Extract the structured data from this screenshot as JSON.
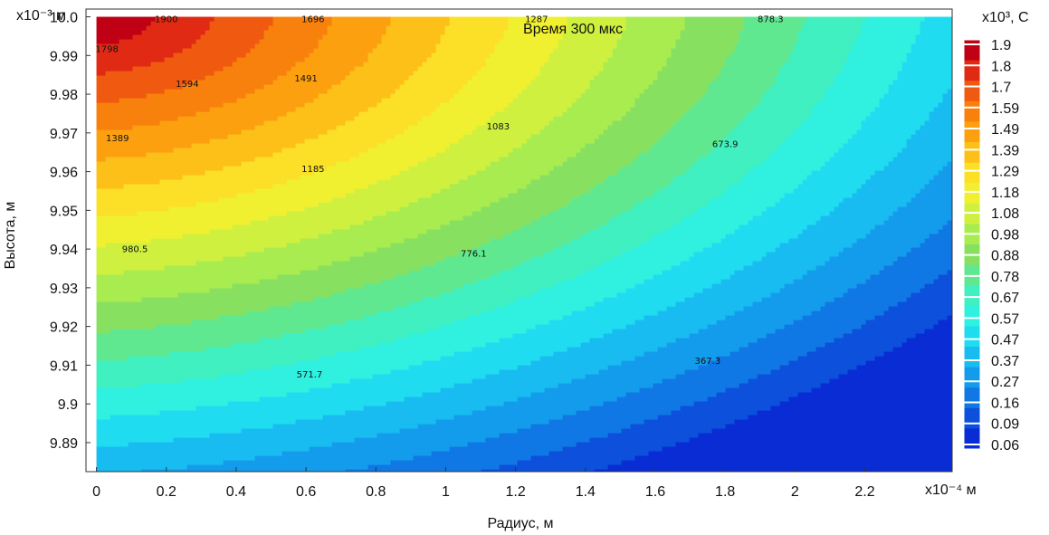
{
  "chart_data": {
    "type": "heatmap",
    "title": "Время 300 мкс",
    "xlabel": "Радиус, м",
    "ylabel": "Высота, м",
    "x_multiplier": "x10⁻⁴ м",
    "y_multiplier": "x10⁻³ м",
    "colorbar_title": "x10³, С",
    "xlim": [
      -0.03,
      2.45
    ],
    "ylim": [
      9.8825,
      10.002
    ],
    "x_ticks": [
      {
        "value": 0,
        "label": "0"
      },
      {
        "value": 0.2,
        "label": "0.2"
      },
      {
        "value": 0.4,
        "label": "0.4"
      },
      {
        "value": 0.6,
        "label": "0.6"
      },
      {
        "value": 0.8,
        "label": "0.8"
      },
      {
        "value": 1.0,
        "label": "1"
      },
      {
        "value": 1.2,
        "label": "1.2"
      },
      {
        "value": 1.4,
        "label": "1.4"
      },
      {
        "value": 1.6,
        "label": "1.6"
      },
      {
        "value": 1.8,
        "label": "1.8"
      },
      {
        "value": 2.0,
        "label": "2"
      },
      {
        "value": 2.2,
        "label": "2.2"
      }
    ],
    "y_ticks": [
      {
        "value": 10.0,
        "label": "10.0"
      },
      {
        "value": 9.99,
        "label": "9.99"
      },
      {
        "value": 9.98,
        "label": "9.98"
      },
      {
        "value": 9.97,
        "label": "9.97"
      },
      {
        "value": 9.96,
        "label": "9.96"
      },
      {
        "value": 9.95,
        "label": "9.95"
      },
      {
        "value": 9.94,
        "label": "9.94"
      },
      {
        "value": 9.93,
        "label": "9.93"
      },
      {
        "value": 9.92,
        "label": "9.92"
      },
      {
        "value": 9.91,
        "label": "9.91"
      },
      {
        "value": 9.9,
        "label": "9.9"
      },
      {
        "value": 9.89,
        "label": "9.89"
      }
    ],
    "data_xrange": [
      0,
      2.45
    ],
    "data_yrange": [
      9.8825,
      10.0
    ],
    "colorbar_levels": [
      "1.9",
      "1.8",
      "1.7",
      "1.59",
      "1.49",
      "1.39",
      "1.29",
      "1.18",
      "1.08",
      "0.98",
      "0.88",
      "0.78",
      "0.67",
      "0.57",
      "0.47",
      "0.37",
      "0.27",
      "0.16",
      "0.09",
      "0.06"
    ],
    "colorbar_colors": [
      "#c00014",
      "#e02a14",
      "#f05a10",
      "#f8800c",
      "#fca010",
      "#fcc018",
      "#fce028",
      "#f0f030",
      "#d0f040",
      "#a8ec50",
      "#88e060",
      "#60e890",
      "#40f0c0",
      "#30f0e0",
      "#20dcf0",
      "#18bcf0",
      "#149cec",
      "#1078e4",
      "#0c50dc",
      "#0a2cd4"
    ],
    "contour_labels": [
      {
        "text": "1900",
        "x": 0.2,
        "y": 9.9995
      },
      {
        "text": "1696",
        "x": 0.62,
        "y": 9.9995
      },
      {
        "text": "1287",
        "x": 1.26,
        "y": 9.9995
      },
      {
        "text": "878.3",
        "x": 1.93,
        "y": 9.9995
      },
      {
        "text": "1798",
        "x": 0.03,
        "y": 9.9918
      },
      {
        "text": "1594",
        "x": 0.26,
        "y": 9.9828
      },
      {
        "text": "1491",
        "x": 0.6,
        "y": 9.9842
      },
      {
        "text": "1083",
        "x": 1.15,
        "y": 9.9718
      },
      {
        "text": "673.9",
        "x": 1.8,
        "y": 9.9673
      },
      {
        "text": "1389",
        "x": 0.06,
        "y": 9.9688
      },
      {
        "text": "1185",
        "x": 0.62,
        "y": 9.9608
      },
      {
        "text": "980.5",
        "x": 0.11,
        "y": 9.9402
      },
      {
        "text": "776.1",
        "x": 1.08,
        "y": 9.939
      },
      {
        "text": "571.7",
        "x": 0.61,
        "y": 9.9077
      },
      {
        "text": "367.3",
        "x": 1.75,
        "y": 9.9113
      }
    ],
    "grid": false,
    "legend": "colorbar-right"
  }
}
